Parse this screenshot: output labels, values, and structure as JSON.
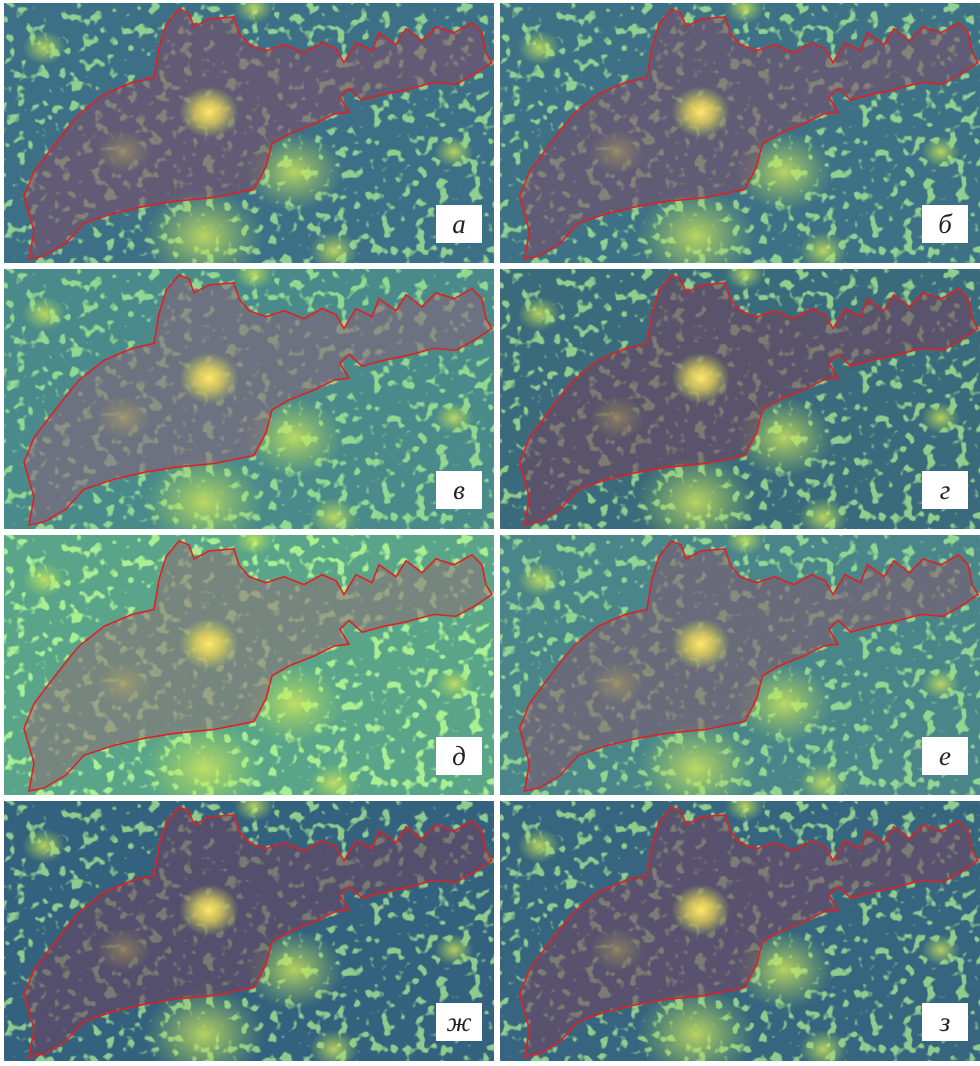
{
  "panels": [
    {
      "label": "а"
    },
    {
      "label": "б"
    },
    {
      "label": "в"
    },
    {
      "label": "г"
    },
    {
      "label": "д"
    },
    {
      "label": "е"
    },
    {
      "label": "ж"
    },
    {
      "label": "з"
    }
  ]
}
